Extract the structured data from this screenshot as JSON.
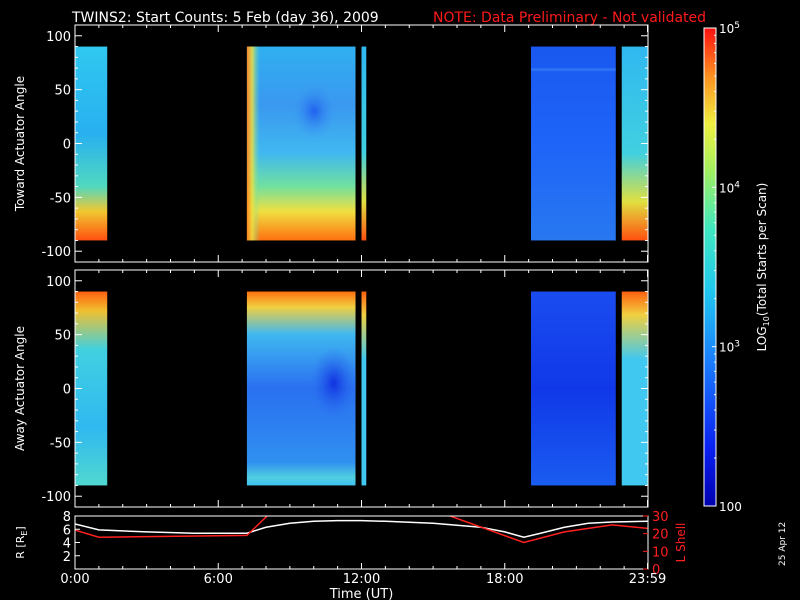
{
  "header": {
    "title": "TWINS2: Start Counts:  5 Feb (day  36), 2009",
    "note": "NOTE: Data Preliminary - Not validated",
    "note_color": "#ff1a1a"
  },
  "footer": {
    "date_stamp": "25 Apr 12"
  },
  "colors": {
    "background": "#000000",
    "axis": "#ffffff",
    "r_line": "#ffffff",
    "lshell_line": "#ff2020"
  },
  "chart_data": [
    {
      "type": "heatmap",
      "panel": "toward",
      "title": "TWINS2: Start Counts:  5 Feb (day  36), 2009",
      "ylabel": "Toward Actuator Angle",
      "ylim": [
        -110,
        110
      ],
      "yticks": [
        100,
        50,
        0,
        -50,
        -100
      ],
      "data_ylim": [
        -90,
        90
      ],
      "xlim": [
        0,
        24
      ],
      "data_segments_hours": [
        [
          0.0,
          1.35
        ],
        [
          7.2,
          11.75
        ],
        [
          12.0,
          12.2
        ],
        [
          19.1,
          22.65
        ],
        [
          22.9,
          24.0
        ]
      ],
      "colormap": "log10 counts, blue (100) to red (100000)"
    },
    {
      "type": "heatmap",
      "panel": "away",
      "ylabel": "Away Actuator Angle",
      "ylim": [
        -110,
        110
      ],
      "yticks": [
        100,
        50,
        0,
        -50,
        -100
      ],
      "data_ylim": [
        -90,
        90
      ],
      "xlim": [
        0,
        24
      ],
      "data_segments_hours": [
        [
          0.0,
          1.35
        ],
        [
          7.2,
          11.75
        ],
        [
          12.0,
          12.2
        ],
        [
          19.1,
          22.65
        ],
        [
          22.9,
          24.0
        ]
      ]
    },
    {
      "type": "line",
      "panel": "orbit",
      "xlabel": "Time (UT)",
      "xticks": [
        "0:00",
        "6:00",
        "12:00",
        "18:00",
        "23:59"
      ],
      "xtick_hours": [
        0,
        6,
        12,
        18,
        23.98
      ],
      "ylabel": "R [RE]",
      "ylabel_parts": [
        "R [R",
        "E",
        "]"
      ],
      "yticks_left": [
        2,
        4,
        6,
        8
      ],
      "ylim_left": [
        0,
        8
      ],
      "ylabel_right": "L Shell",
      "yticks_right": [
        0,
        10,
        20,
        30
      ],
      "ylim_right": [
        0,
        30
      ],
      "series": [
        {
          "name": "R [RE]",
          "axis": "left",
          "color": "#ffffff",
          "x": [
            0,
            1,
            3,
            5,
            7.2,
            8,
            9,
            10,
            11,
            12,
            13,
            15,
            17,
            18,
            18.8,
            19.5,
            20.5,
            21.5,
            22.5,
            23.98
          ],
          "y": [
            6.8,
            5.9,
            5.6,
            5.4,
            5.4,
            6.3,
            6.9,
            7.2,
            7.3,
            7.3,
            7.2,
            6.9,
            6.3,
            5.6,
            4.8,
            5.4,
            6.3,
            6.9,
            7.1,
            7.2
          ]
        },
        {
          "name": "L Shell",
          "axis": "right",
          "color": "#ff2020",
          "x": [
            0,
            1,
            7.2,
            8.2,
            15.3,
            18.8,
            20.5,
            22.5,
            23.98
          ],
          "y": [
            22,
            18,
            19,
            32,
            32,
            15,
            21,
            25,
            23
          ]
        }
      ]
    },
    {
      "type": "heatmap",
      "panel": "colorbar",
      "ylabel": "LOG10(Total Starts per Scan)",
      "ylabel_parts": [
        "LOG",
        "10",
        "(Total Starts per Scan)"
      ],
      "ticks": [
        "100",
        "10^3",
        "10^4",
        "10^5"
      ],
      "tick_labels": [
        {
          "base": "100",
          "exp": ""
        },
        {
          "base": "10",
          "exp": "3"
        },
        {
          "base": "10",
          "exp": "4"
        },
        {
          "base": "10",
          "exp": "5"
        }
      ],
      "range_log10": [
        2,
        5
      ]
    }
  ]
}
